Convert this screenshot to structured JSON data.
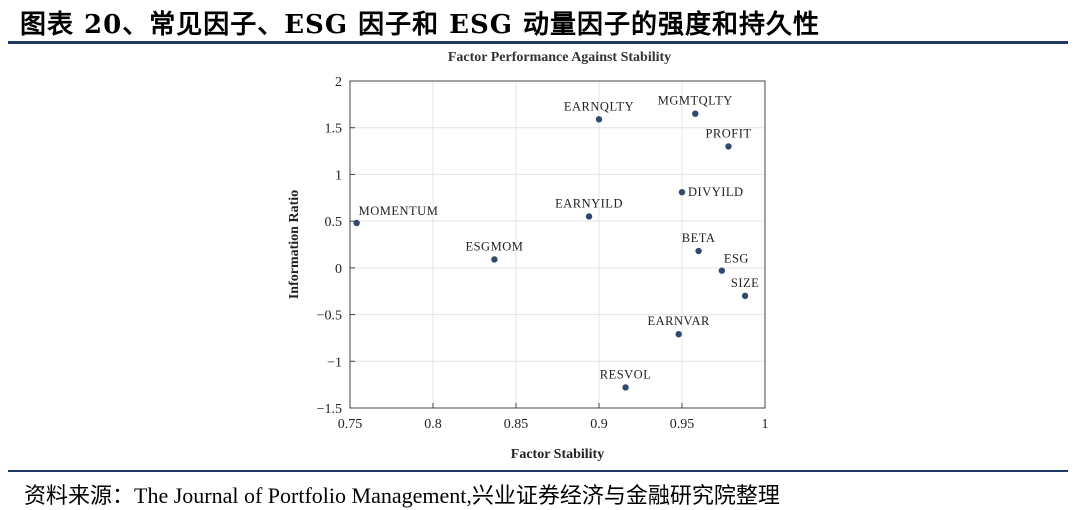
{
  "figure": {
    "title": "图表 20、常见因子、ESG 因子和 ESG 动量因子的强度和持久性",
    "source": "资料来源：The Journal of Portfolio Management,兴业证券经济与金融研究院整理"
  },
  "chart_data": {
    "type": "scatter",
    "title": "Factor Performance Against Stability",
    "xlabel": "Factor Stability",
    "ylabel": "Information Ratio",
    "xlim": [
      0.75,
      1.0
    ],
    "ylim": [
      -1.5,
      2.0
    ],
    "xticks": [
      0.75,
      0.8,
      0.85,
      0.9,
      0.95,
      1.0
    ],
    "xtick_labels": [
      "0.75",
      "0.8",
      "0.85",
      "0.9",
      "0.95",
      "1"
    ],
    "yticks": [
      -1.5,
      -1.0,
      -0.5,
      0.0,
      0.5,
      1.0,
      1.5,
      2.0
    ],
    "ytick_labels": [
      "−1.5",
      "−1",
      "−0.5",
      "0",
      "0.5",
      "1",
      "1.5",
      "2"
    ],
    "grid": true,
    "point_color": "#2f4a6d",
    "points": [
      {
        "label": "MOMENTUM",
        "x": 0.754,
        "y": 0.48,
        "label_pos": "above-right"
      },
      {
        "label": "ESGMOM",
        "x": 0.837,
        "y": 0.09,
        "label_pos": "above"
      },
      {
        "label": "EARNYILD",
        "x": 0.894,
        "y": 0.55,
        "label_pos": "above"
      },
      {
        "label": "EARNQLTY",
        "x": 0.9,
        "y": 1.59,
        "label_pos": "above"
      },
      {
        "label": "MGMTQLTY",
        "x": 0.958,
        "y": 1.65,
        "label_pos": "above"
      },
      {
        "label": "PROFIT",
        "x": 0.978,
        "y": 1.3,
        "label_pos": "above"
      },
      {
        "label": "DIVYILD",
        "x": 0.95,
        "y": 0.81,
        "label_pos": "right"
      },
      {
        "label": "BETA",
        "x": 0.96,
        "y": 0.18,
        "label_pos": "above"
      },
      {
        "label": "ESG",
        "x": 0.974,
        "y": -0.03,
        "label_pos": "above-right"
      },
      {
        "label": "SIZE",
        "x": 0.988,
        "y": -0.3,
        "label_pos": "above"
      },
      {
        "label": "EARNVAR",
        "x": 0.948,
        "y": -0.71,
        "label_pos": "above"
      },
      {
        "label": "RESVOL",
        "x": 0.916,
        "y": -1.28,
        "label_pos": "above"
      }
    ]
  }
}
